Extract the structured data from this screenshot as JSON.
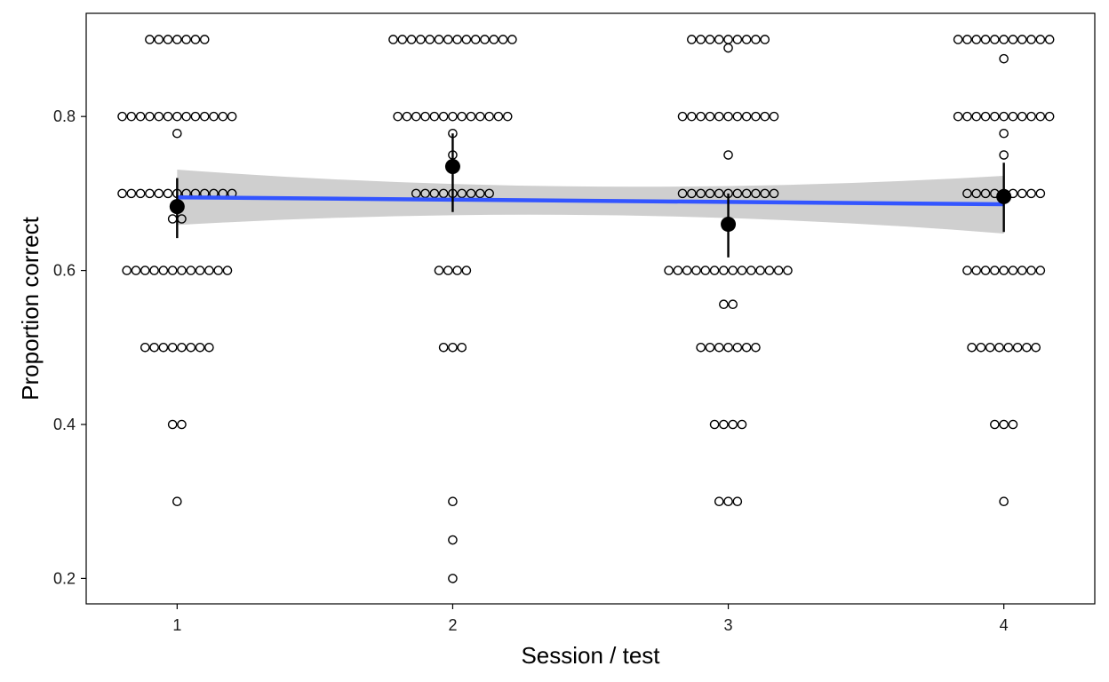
{
  "chart_data": {
    "type": "scatter",
    "xlabel": "Session / test",
    "ylabel": "Proportion correct",
    "xlim": [
      0.67,
      4.33
    ],
    "ylim": [
      0.167,
      0.934
    ],
    "x_ticks": [
      1,
      2,
      3,
      4
    ],
    "y_ticks": [
      0.2,
      0.4,
      0.6,
      0.8
    ],
    "y_tick_labels": [
      "0.2",
      "0.4",
      "0.6",
      "0.8"
    ],
    "x_tick_labels": [
      "1",
      "2",
      "3",
      "4"
    ],
    "grid": false,
    "legend": "none",
    "colors": {
      "points_stroke": "#000000",
      "mean": "#000000",
      "trend_line": "#3355ff",
      "ribbon": "#cccccc",
      "axis": "#000000"
    },
    "individual_points": [
      {
        "x": 1,
        "counts": [
          [
            0.9,
            7
          ],
          [
            0.8,
            13
          ],
          [
            0.778,
            1
          ],
          [
            0.7,
            13
          ],
          [
            0.667,
            2
          ],
          [
            0.6,
            12
          ],
          [
            0.5,
            8
          ],
          [
            0.4,
            2
          ],
          [
            0.3,
            1
          ]
        ]
      },
      {
        "x": 2,
        "counts": [
          [
            0.9,
            14
          ],
          [
            0.8,
            13
          ],
          [
            0.778,
            1
          ],
          [
            0.75,
            1
          ],
          [
            0.7,
            9
          ],
          [
            0.6,
            4
          ],
          [
            0.5,
            3
          ],
          [
            0.3,
            1
          ],
          [
            0.25,
            1
          ],
          [
            0.2,
            1
          ]
        ]
      },
      {
        "x": 3,
        "counts": [
          [
            0.9,
            9
          ],
          [
            0.889,
            1
          ],
          [
            0.8,
            11
          ],
          [
            0.75,
            1
          ],
          [
            0.7,
            11
          ],
          [
            0.6,
            14
          ],
          [
            0.556,
            2
          ],
          [
            0.5,
            7
          ],
          [
            0.4,
            4
          ],
          [
            0.3,
            3
          ]
        ]
      },
      {
        "x": 4,
        "counts": [
          [
            0.9,
            11
          ],
          [
            0.875,
            1
          ],
          [
            0.8,
            11
          ],
          [
            0.778,
            1
          ],
          [
            0.75,
            1
          ],
          [
            0.7,
            9
          ],
          [
            0.6,
            9
          ],
          [
            0.5,
            8
          ],
          [
            0.4,
            3
          ],
          [
            0.3,
            1
          ]
        ]
      }
    ],
    "means": [
      {
        "x": 1,
        "y": 0.683,
        "lower": 0.642,
        "upper": 0.72
      },
      {
        "x": 2,
        "y": 0.735,
        "lower": 0.676,
        "upper": 0.778
      },
      {
        "x": 3,
        "y": 0.66,
        "lower": 0.617,
        "upper": 0.7
      },
      {
        "x": 4,
        "y": 0.696,
        "lower": 0.65,
        "upper": 0.74
      }
    ],
    "trend": {
      "x": [
        1,
        4
      ],
      "y": [
        0.695,
        0.686
      ],
      "ribbon_lower": [
        0.659,
        0.648
      ],
      "ribbon_upper": [
        0.731,
        0.723
      ],
      "ribbon_mid": {
        "x": 2.5,
        "lower": 0.672,
        "upper": 0.709
      }
    }
  }
}
